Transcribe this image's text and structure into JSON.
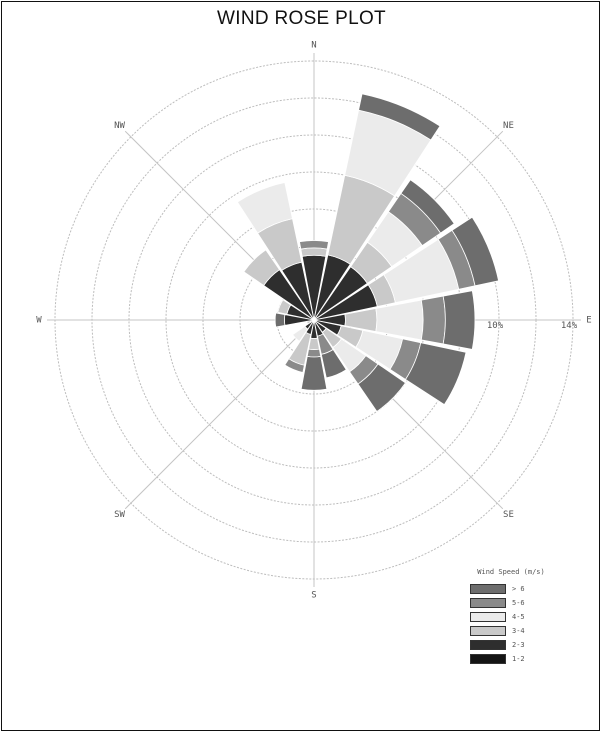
{
  "title": "WIND ROSE PLOT",
  "chart_data": {
    "type": "wind-rose",
    "title": "WIND ROSE PLOT",
    "direction_labels": [
      "N",
      "NE",
      "E",
      "SE",
      "S",
      "SW",
      "W",
      "NW"
    ],
    "sectors": 16,
    "ring_values": [
      2,
      4,
      6,
      8,
      10,
      12,
      14
    ],
    "ring_labels": [
      "10%",
      "14%"
    ],
    "speed_bins": [
      "1-2",
      "2-3",
      "3-4",
      "4-5",
      "5-6",
      "> 6"
    ],
    "speed_bin_colors": [
      "#141414",
      "#2e2e2e",
      "#c9c9c9",
      "#ebebeb",
      "#8a8a8a",
      "#6d6d6d"
    ],
    "series_by_direction_percent": [
      [
        0.0,
        3.5,
        0.4,
        0.0,
        0.4,
        0.0
      ],
      [
        0.0,
        3.6,
        4.4,
        3.6,
        0.0,
        0.9
      ],
      [
        0.0,
        3.5,
        1.6,
        2.0,
        1.2,
        0.9
      ],
      [
        0.0,
        3.5,
        1.0,
        3.5,
        0.9,
        1.3
      ],
      [
        0.0,
        1.7,
        1.7,
        2.5,
        1.2,
        1.6
      ],
      [
        0.0,
        1.5,
        1.2,
        2.2,
        1.0,
        2.5
      ],
      [
        0.0,
        0.8,
        1.0,
        1.6,
        0.8,
        1.8
      ],
      [
        0.0,
        0.9,
        0.0,
        0.0,
        1.0,
        1.3
      ],
      [
        0.0,
        1.0,
        0.6,
        0.0,
        0.4,
        1.8
      ],
      [
        0.0,
        0.8,
        1.7,
        0.0,
        0.4,
        0.0
      ],
      [
        0.0,
        0.6,
        0.0,
        0.8,
        0.0,
        0.0
      ],
      [
        0.0,
        0.2,
        0.2,
        0.0,
        0.0,
        0.0
      ],
      [
        0.0,
        1.6,
        0.0,
        0.0,
        0.0,
        0.5
      ],
      [
        0.0,
        1.5,
        0.5,
        0.0,
        0.0,
        0.0
      ],
      [
        0.0,
        3.3,
        1.3,
        0.0,
        0.0,
        0.0
      ],
      [
        0.0,
        3.2,
        2.4,
        2.0,
        0.0,
        0.0
      ]
    ]
  },
  "legend": {
    "title": "Wind Speed (m/s)"
  }
}
